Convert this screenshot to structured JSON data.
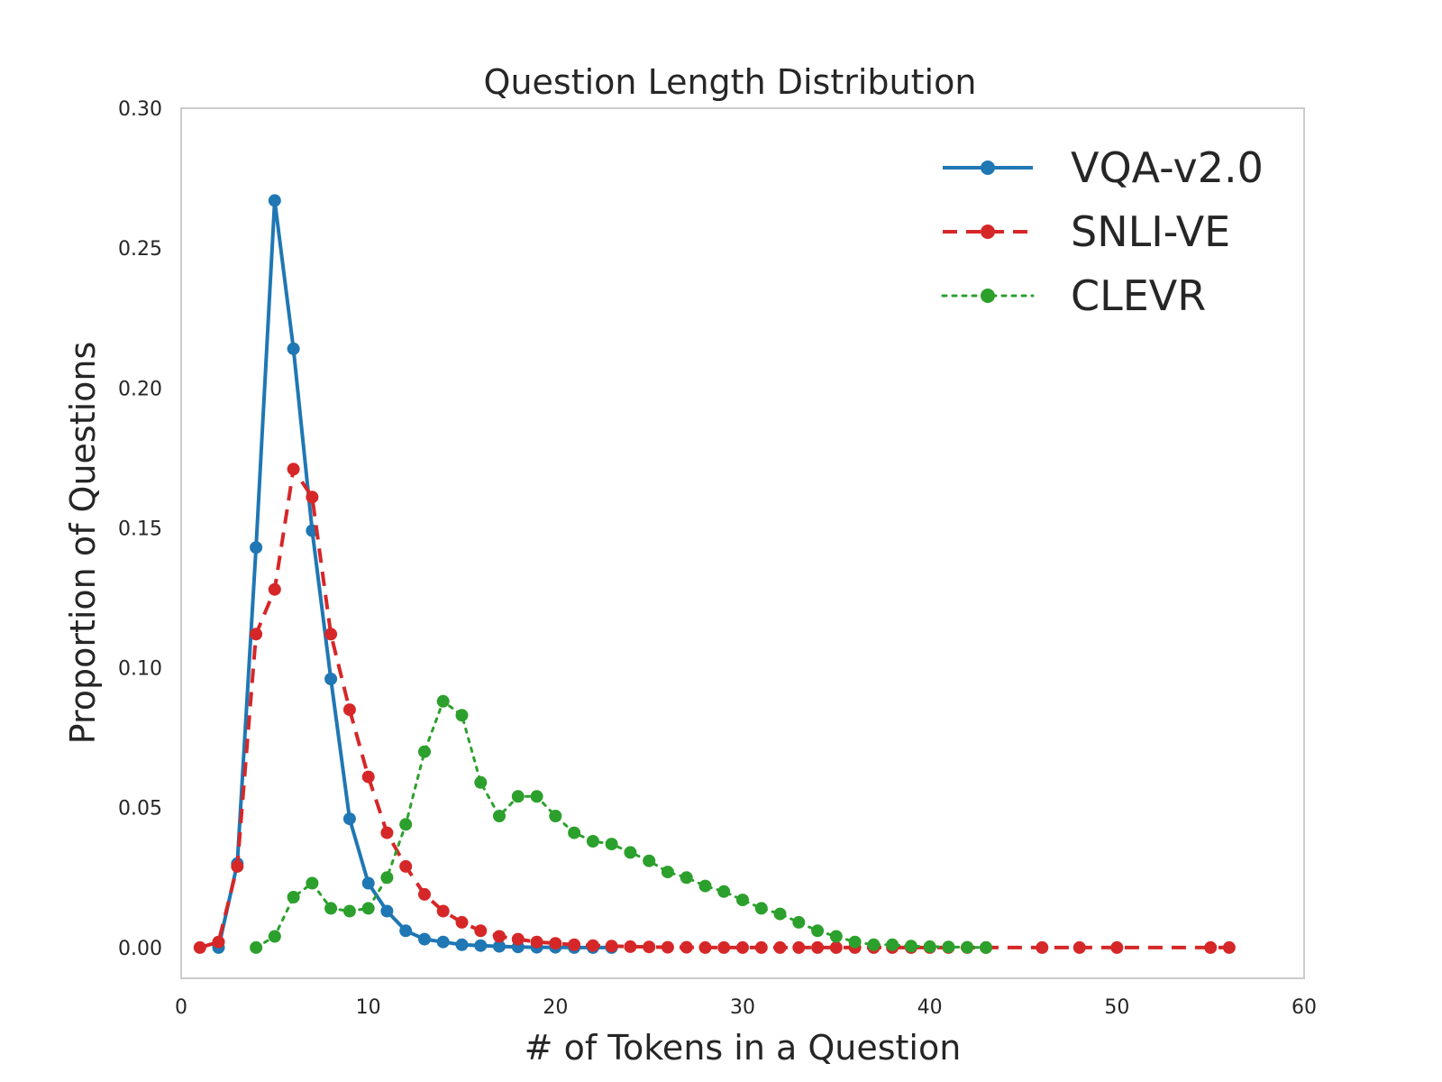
{
  "chart_data": {
    "type": "line",
    "title": "Question Length Distribution",
    "xlabel": "# of Tokens in a Question",
    "ylabel": "Proportion of Questions",
    "xlim": [
      0,
      60
    ],
    "ylim": [
      -0.011,
      0.3
    ],
    "xticks": [
      0,
      10,
      20,
      30,
      40,
      50,
      60
    ],
    "yticks": [
      0.0,
      0.05,
      0.1,
      0.15,
      0.2,
      0.25,
      0.3
    ],
    "xtick_labels": [
      "0",
      "10",
      "20",
      "30",
      "40",
      "50",
      "60"
    ],
    "ytick_labels": [
      "0.00",
      "0.05",
      "0.10",
      "0.15",
      "0.20",
      "0.25",
      "0.30"
    ],
    "grid": false,
    "legend_position": "top-right",
    "series": [
      {
        "name": "VQA-v2.0",
        "color": "#1f77b4",
        "line_style": "solid",
        "x": [
          2,
          3,
          4,
          5,
          6,
          7,
          8,
          9,
          10,
          11,
          12,
          13,
          14,
          15,
          16,
          17,
          18,
          19,
          20,
          21,
          22,
          23
        ],
        "y": [
          0.0,
          0.03,
          0.143,
          0.267,
          0.214,
          0.149,
          0.096,
          0.046,
          0.023,
          0.013,
          0.006,
          0.003,
          0.002,
          0.001,
          0.0007,
          0.0004,
          0.0002,
          0.0001,
          0.0001,
          0.0,
          0.0,
          0.0
        ]
      },
      {
        "name": "SNLI-VE",
        "color": "#d62728",
        "line_style": "dashed",
        "x": [
          1,
          2,
          3,
          4,
          5,
          6,
          7,
          8,
          9,
          10,
          11,
          12,
          13,
          14,
          15,
          16,
          17,
          18,
          19,
          20,
          21,
          22,
          23,
          24,
          25,
          26,
          27,
          28,
          29,
          30,
          31,
          32,
          33,
          34,
          35,
          36,
          37,
          38,
          39,
          40,
          41,
          42,
          43,
          46,
          48,
          50,
          55,
          56
        ],
        "y": [
          0.0,
          0.002,
          0.029,
          0.112,
          0.128,
          0.171,
          0.161,
          0.112,
          0.085,
          0.061,
          0.041,
          0.029,
          0.019,
          0.013,
          0.009,
          0.006,
          0.004,
          0.003,
          0.002,
          0.0015,
          0.001,
          0.0007,
          0.0005,
          0.0003,
          0.0002,
          0.0001,
          0.0001,
          0.0,
          0.0,
          0.0,
          0.0,
          0.0,
          0.0,
          0.0,
          0.0,
          0.0,
          0.0,
          0.0,
          0.0,
          0.0,
          0.0,
          0.0,
          0.0,
          0.0,
          0.0,
          0.0,
          0.0,
          0.0
        ]
      },
      {
        "name": "CLEVR",
        "color": "#2ca02c",
        "line_style": "dotted",
        "x": [
          4,
          5,
          6,
          7,
          8,
          9,
          10,
          11,
          12,
          13,
          14,
          15,
          16,
          17,
          18,
          19,
          20,
          21,
          22,
          23,
          24,
          25,
          26,
          27,
          28,
          29,
          30,
          31,
          32,
          33,
          34,
          35,
          36,
          37,
          38,
          39,
          40,
          41,
          42,
          43
        ],
        "y": [
          0.0,
          0.004,
          0.018,
          0.023,
          0.014,
          0.013,
          0.014,
          0.025,
          0.044,
          0.07,
          0.088,
          0.083,
          0.059,
          0.047,
          0.054,
          0.054,
          0.047,
          0.041,
          0.038,
          0.037,
          0.034,
          0.031,
          0.027,
          0.025,
          0.022,
          0.02,
          0.017,
          0.014,
          0.012,
          0.009,
          0.006,
          0.004,
          0.002,
          0.001,
          0.001,
          0.0005,
          0.0003,
          0.0002,
          0.0001,
          0.0
        ]
      }
    ]
  }
}
